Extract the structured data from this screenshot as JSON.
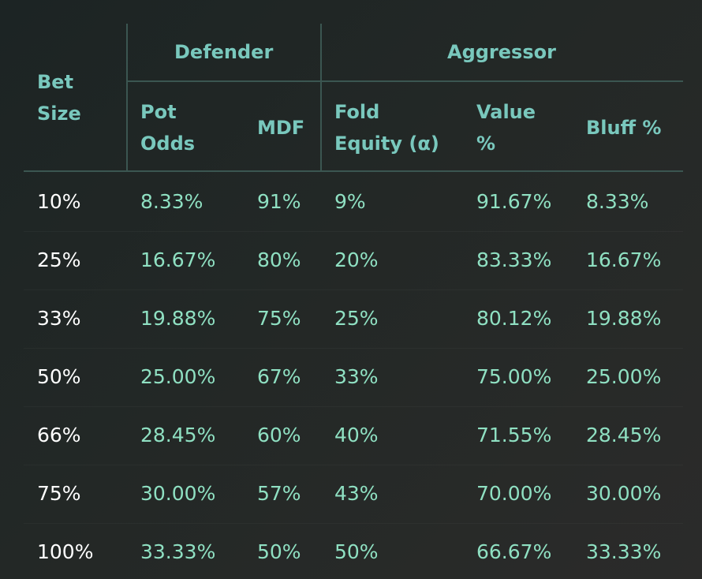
{
  "headers": {
    "bet_size": "Bet\nSize",
    "defender": "Defender",
    "aggressor": "Aggressor",
    "pot_odds": "Pot\nOdds",
    "mdf": "MDF",
    "fold_equity": "Fold\nEquity (α)",
    "value_pct": "Value\n%",
    "bluff_pct": "Bluff %"
  },
  "rows": [
    {
      "bet": "10%",
      "pot_odds": "8.33%",
      "mdf": "91%",
      "fold_equity": "9%",
      "value": "91.67%",
      "bluff": "8.33%"
    },
    {
      "bet": "25%",
      "pot_odds": "16.67%",
      "mdf": "80%",
      "fold_equity": "20%",
      "value": "83.33%",
      "bluff": "16.67%"
    },
    {
      "bet": "33%",
      "pot_odds": "19.88%",
      "mdf": "75%",
      "fold_equity": "25%",
      "value": "80.12%",
      "bluff": "19.88%"
    },
    {
      "bet": "50%",
      "pot_odds": "25.00%",
      "mdf": "67%",
      "fold_equity": "33%",
      "value": "75.00%",
      "bluff": "25.00%"
    },
    {
      "bet": "66%",
      "pot_odds": "28.45%",
      "mdf": "60%",
      "fold_equity": "40%",
      "value": "71.55%",
      "bluff": "28.45%"
    },
    {
      "bet": "75%",
      "pot_odds": "30.00%",
      "mdf": "57%",
      "fold_equity": "43%",
      "value": "70.00%",
      "bluff": "30.00%"
    },
    {
      "bet": "100%",
      "pot_odds": "33.33%",
      "mdf": "50%",
      "fold_equity": "50%",
      "value": "66.67%",
      "bluff": "33.33%"
    }
  ]
}
